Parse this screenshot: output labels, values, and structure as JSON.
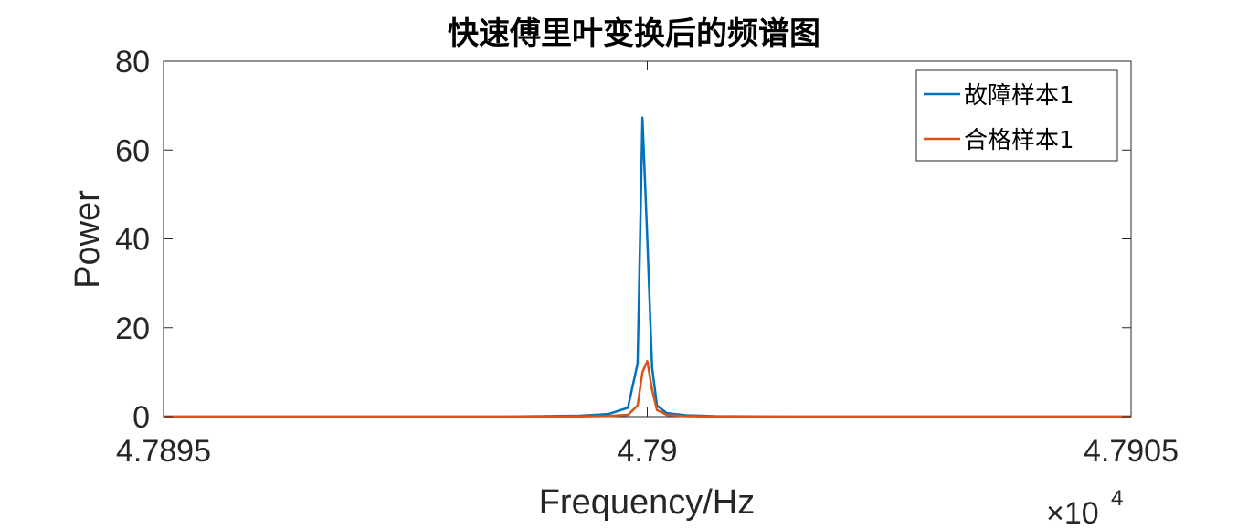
{
  "chart_data": {
    "type": "line",
    "title": "快速傅里叶变换后的频谱图",
    "xlabel": "Frequency/Hz",
    "ylabel": "Power",
    "x_multiplier": "×10",
    "x_multiplier_exp": "4",
    "xlim": [
      4.7895,
      4.7905
    ],
    "ylim": [
      0,
      80
    ],
    "xticks": [
      4.7895,
      4.79,
      4.7905
    ],
    "xtick_labels": [
      "4.7895",
      "4.79",
      "4.7905"
    ],
    "yticks": [
      0,
      20,
      40,
      60,
      80
    ],
    "ytick_labels": [
      "0",
      "20",
      "40",
      "60",
      "80"
    ],
    "grid": false,
    "legend_position": "top-right",
    "series": [
      {
        "name": "故障样本1",
        "color": "#0072BD",
        "x": [
          4.7895,
          4.78985,
          4.78993,
          4.78996,
          4.78998,
          4.78999,
          4.789995,
          4.79,
          4.790005,
          4.79001,
          4.79002,
          4.79004,
          4.79007,
          4.79015,
          4.7905
        ],
        "y": [
          0,
          0,
          0.2,
          0.6,
          2.0,
          12,
          67.3,
          40,
          11,
          2.5,
          0.8,
          0.3,
          0.1,
          0,
          0
        ]
      },
      {
        "name": "合格样本1",
        "color": "#D95319",
        "x": [
          4.7895,
          4.78985,
          4.78993,
          4.78996,
          4.78998,
          4.78999,
          4.789995,
          4.79,
          4.790005,
          4.79001,
          4.79002,
          4.79004,
          4.79007,
          4.79015,
          4.7905
        ],
        "y": [
          0,
          0,
          0.05,
          0.15,
          0.4,
          2.5,
          10,
          12.5,
          6,
          1.5,
          0.4,
          0.1,
          0.03,
          0,
          0
        ]
      }
    ]
  }
}
